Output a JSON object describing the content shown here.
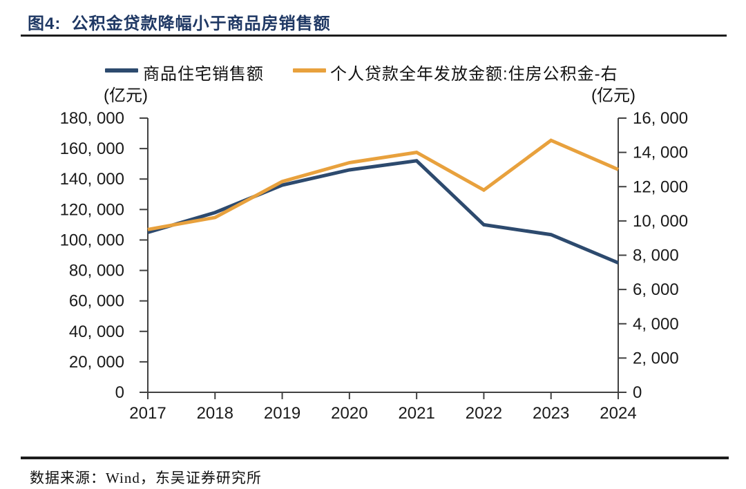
{
  "figure": {
    "title": "图4:  公积金贷款降幅小于商品房销售额",
    "source": "数据来源：Wind，东吴证券研究所"
  },
  "chart_data": {
    "type": "line",
    "x": [
      "2017",
      "2018",
      "2019",
      "2020",
      "2021",
      "2022",
      "2023",
      "2024"
    ],
    "series": [
      {
        "name": "商品住宅销售额",
        "axis": "left",
        "color": "#2d4a6e",
        "values": [
          105000,
          118000,
          136000,
          146000,
          152000,
          110000,
          103500,
          85000
        ]
      },
      {
        "name": "个人贷款全年发放金额:住房公积金-右",
        "axis": "right",
        "color": "#e8a13d",
        "values": [
          9500,
          10200,
          12300,
          13400,
          14000,
          11800,
          14700,
          13000
        ]
      }
    ],
    "left_axis": {
      "unit": "(亿元)",
      "min": 0,
      "max": 180000,
      "step": 20000
    },
    "right_axis": {
      "unit": "(亿元)",
      "min": 0,
      "max": 16000,
      "step": 2000
    },
    "legend_position": "top",
    "grid": false
  },
  "colors": {
    "title": "#1f3864",
    "axis": "#404040",
    "tick_text": "#1a1a1a",
    "rule": "#1c1c1c"
  }
}
